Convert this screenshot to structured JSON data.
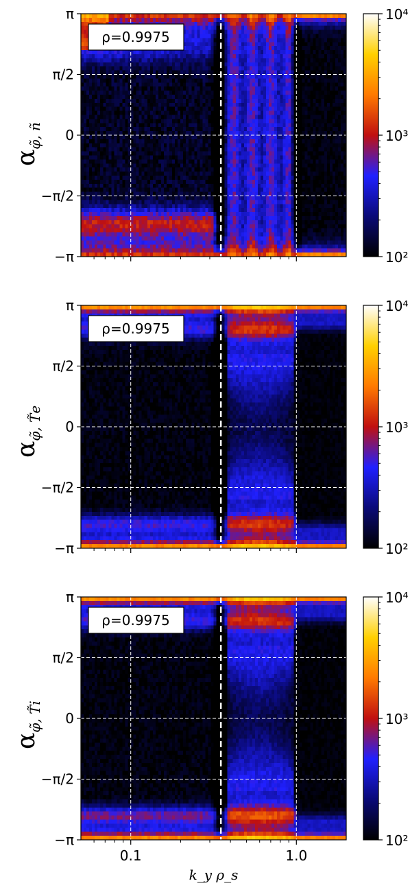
{
  "colors": {
    "cmap": [
      "#000000",
      "#0a0a78",
      "#2020ff",
      "#c01010",
      "#ff7a00",
      "#ffd000",
      "#ffffff"
    ],
    "guide": "#ffffff",
    "frame": "#000000"
  },
  "x_label": "k_y ρ_s",
  "chart_data": [
    {
      "type": "heatmap",
      "panel": "top",
      "ylabel_main": "α",
      "ylabel_sub": "φ̃, ñ",
      "annotation": "ρ=0.9975",
      "x_scale": "log",
      "xlim": [
        0.05,
        2.0
      ],
      "ylim": [
        -3.1416,
        3.1416
      ],
      "x_ticks": [
        {
          "value": 0.1,
          "label": "0.1"
        },
        {
          "value": 1.0,
          "label": "1.0"
        }
      ],
      "y_ticks": [
        {
          "value": 3.1416,
          "label": "π"
        },
        {
          "value": 1.5708,
          "label": "π/2"
        },
        {
          "value": 0,
          "label": "0"
        },
        {
          "value": -1.5708,
          "label": "−π/2"
        },
        {
          "value": -3.1416,
          "label": "−π"
        }
      ],
      "colorbar": {
        "scale": "log",
        "min": 100,
        "max": 10000,
        "tick_labels": [
          "10²",
          "10³",
          "10⁴"
        ],
        "tick_values": [
          100,
          1000,
          10000
        ]
      },
      "vertical_markers": [
        0.35,
        1.0
      ],
      "grid": true
    },
    {
      "type": "heatmap",
      "panel": "middle",
      "ylabel_main": "α",
      "ylabel_sub": "φ̃, T̃e",
      "annotation": "ρ=0.9975",
      "x_scale": "log",
      "xlim": [
        0.05,
        2.0
      ],
      "ylim": [
        -3.1416,
        3.1416
      ],
      "x_ticks": [
        {
          "value": 0.1,
          "label": "0.1"
        },
        {
          "value": 1.0,
          "label": "1.0"
        }
      ],
      "y_ticks": [
        {
          "value": 3.1416,
          "label": "π"
        },
        {
          "value": 1.5708,
          "label": "π/2"
        },
        {
          "value": 0,
          "label": "0"
        },
        {
          "value": -1.5708,
          "label": "−π/2"
        },
        {
          "value": -3.1416,
          "label": "−π"
        }
      ],
      "colorbar": {
        "scale": "log",
        "min": 100,
        "max": 10000,
        "tick_labels": [
          "10²",
          "10³",
          "10⁴"
        ],
        "tick_values": [
          100,
          1000,
          10000
        ]
      },
      "vertical_markers": [
        0.35,
        1.0
      ],
      "grid": true
    },
    {
      "type": "heatmap",
      "panel": "bottom",
      "ylabel_main": "α",
      "ylabel_sub": "φ̃, T̃i",
      "annotation": "ρ=0.9975",
      "x_scale": "log",
      "xlim": [
        0.05,
        2.0
      ],
      "ylim": [
        -3.1416,
        3.1416
      ],
      "x_ticks": [
        {
          "value": 0.1,
          "label": "0.1"
        },
        {
          "value": 1.0,
          "label": "1.0"
        }
      ],
      "y_ticks": [
        {
          "value": 3.1416,
          "label": "π"
        },
        {
          "value": 1.5708,
          "label": "π/2"
        },
        {
          "value": 0,
          "label": "0"
        },
        {
          "value": -1.5708,
          "label": "−π/2"
        },
        {
          "value": -3.1416,
          "label": "−π"
        }
      ],
      "colorbar": {
        "scale": "log",
        "min": 100,
        "max": 10000,
        "tick_labels": [
          "10²",
          "10³",
          "10⁴"
        ],
        "tick_values": [
          100,
          1000,
          10000
        ]
      },
      "vertical_markers": [
        0.35,
        1.0
      ],
      "grid": true
    }
  ]
}
